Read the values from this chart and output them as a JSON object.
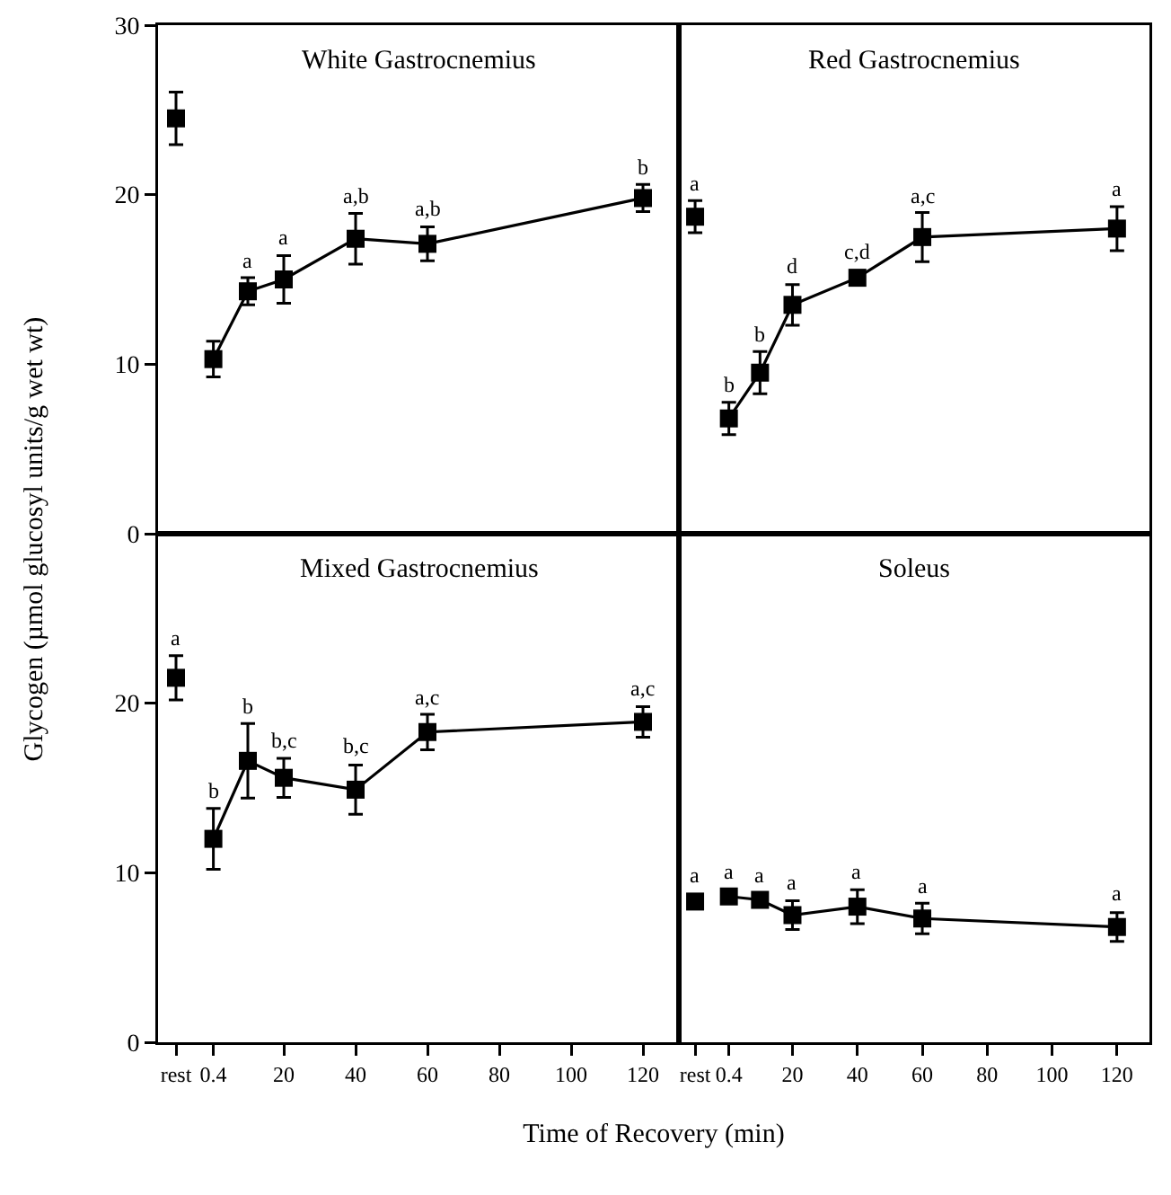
{
  "chart_data": [
    {
      "type": "line",
      "title": "White Gastrocnemius",
      "ylabel": "Glycogen (µmol glucosyl units/g wet wt)",
      "xlim": [
        -15,
        130
      ],
      "ylim": [
        0,
        30
      ],
      "yticks": [
        0,
        10,
        20,
        30
      ],
      "tick_labels": "y",
      "marker": "square",
      "grid": false,
      "series": [
        {
          "type": "scatter",
          "color": "#000000",
          "x": [
            -10
          ],
          "values": [
            24.5
          ],
          "errors": [
            1.55
          ]
        },
        {
          "color": "#000000",
          "x": [
            0.4,
            10,
            20,
            40,
            60,
            120
          ],
          "values": [
            10.3,
            14.3,
            15.0,
            17.4,
            17.1,
            19.8
          ],
          "errors": [
            1.05,
            0.8,
            1.4,
            1.5,
            1.0,
            0.8
          ]
        }
      ],
      "annotations": [
        {
          "text": "a",
          "x": 10,
          "y": 15.1
        },
        {
          "text": "a",
          "x": 20,
          "y": 16.4
        },
        {
          "text": "a,b",
          "x": 40,
          "y": 18.9
        },
        {
          "text": "a,b",
          "x": 60,
          "y": 18.1
        },
        {
          "text": "b",
          "x": 120,
          "y": 20.6
        }
      ]
    },
    {
      "type": "line",
      "title": "Red Gastrocnemius",
      "xlim": [
        -15,
        130
      ],
      "ylim": [
        0,
        30
      ],
      "yticks": [
        0,
        10,
        20,
        30
      ],
      "tick_labels": false,
      "marker": "square",
      "grid": false,
      "series": [
        {
          "type": "scatter",
          "color": "#000000",
          "x": [
            -10
          ],
          "values": [
            18.7
          ],
          "errors": [
            0.95
          ]
        },
        {
          "color": "#000000",
          "x": [
            0.4,
            10,
            20,
            40,
            60,
            120
          ],
          "values": [
            6.8,
            9.5,
            13.5,
            15.1,
            17.5,
            18.0
          ],
          "errors": [
            0.95,
            1.25,
            1.2,
            null,
            1.45,
            1.3
          ]
        }
      ],
      "annotations": [
        {
          "text": "a",
          "x": -10,
          "y": 19.6
        },
        {
          "text": "b",
          "x": 0.4,
          "y": 7.7
        },
        {
          "text": "b",
          "x": 10,
          "y": 10.7
        },
        {
          "text": "d",
          "x": 20,
          "y": 14.7
        },
        {
          "text": "c,d",
          "x": 40,
          "y": 15.6
        },
        {
          "text": "a,c",
          "x": 60,
          "y": 18.9
        },
        {
          "text": "a",
          "x": 120,
          "y": 19.3
        }
      ]
    },
    {
      "type": "line",
      "title": "Mixed Gastrocnemius",
      "xlabel": "Time of  Recovery (min)",
      "xlim": [
        -15,
        130
      ],
      "xticks": [
        {
          "value": -10,
          "label": "rest"
        },
        0.4,
        20,
        40,
        60,
        80,
        100,
        120
      ],
      "ylim": [
        0,
        30
      ],
      "yticks": [
        0,
        10,
        20
      ],
      "marker": "square",
      "grid": false,
      "series": [
        {
          "type": "scatter",
          "color": "#000000",
          "x": [
            -10
          ],
          "values": [
            21.5
          ],
          "errors": [
            1.3
          ]
        },
        {
          "color": "#000000",
          "x": [
            0.4,
            10,
            20,
            40,
            60,
            120
          ],
          "values": [
            12.0,
            16.6,
            15.6,
            14.9,
            18.3,
            18.9
          ],
          "errors": [
            1.8,
            2.2,
            1.15,
            1.45,
            1.05,
            0.9
          ]
        }
      ],
      "annotations": [
        {
          "text": "a",
          "x": -10,
          "y": 22.8
        },
        {
          "text": "b",
          "x": 0.4,
          "y": 13.8
        },
        {
          "text": "b",
          "x": 10,
          "y": 18.8
        },
        {
          "text": "b,c",
          "x": 20,
          "y": 16.8
        },
        {
          "text": "b,c",
          "x": 40,
          "y": 16.4
        },
        {
          "text": "a,c",
          "x": 60,
          "y": 19.3
        },
        {
          "text": "a,c",
          "x": 120,
          "y": 19.8
        }
      ]
    },
    {
      "type": "line",
      "title": "Soleus",
      "xlim": [
        -15,
        130
      ],
      "xticks": [
        {
          "value": -10,
          "label": "rest"
        },
        0.4,
        20,
        40,
        60,
        80,
        100,
        120
      ],
      "ylim": [
        0,
        30
      ],
      "yticks": [
        0,
        10,
        20
      ],
      "tick_labels": "x",
      "marker": "square",
      "grid": false,
      "series": [
        {
          "type": "scatter",
          "color": "#000000",
          "x": [
            -10
          ],
          "values": [
            8.3
          ]
        },
        {
          "color": "#000000",
          "x": [
            0.4,
            10,
            20,
            40,
            60,
            120
          ],
          "values": [
            8.6,
            8.4,
            7.5,
            8.0,
            7.3,
            6.8
          ],
          "errors": [
            null,
            null,
            0.85,
            1.0,
            0.9,
            0.85
          ]
        }
      ],
      "annotations": [
        {
          "text": "a",
          "x": -10,
          "y": 8.8
        },
        {
          "text": "a",
          "x": 0.4,
          "y": 9.0
        },
        {
          "text": "a",
          "x": 10,
          "y": 8.8
        },
        {
          "text": "a",
          "x": 20,
          "y": 8.4
        },
        {
          "text": "a",
          "x": 40,
          "y": 9.0
        },
        {
          "text": "a",
          "x": 60,
          "y": 8.2
        },
        {
          "text": "a",
          "x": 120,
          "y": 7.7
        }
      ]
    }
  ]
}
